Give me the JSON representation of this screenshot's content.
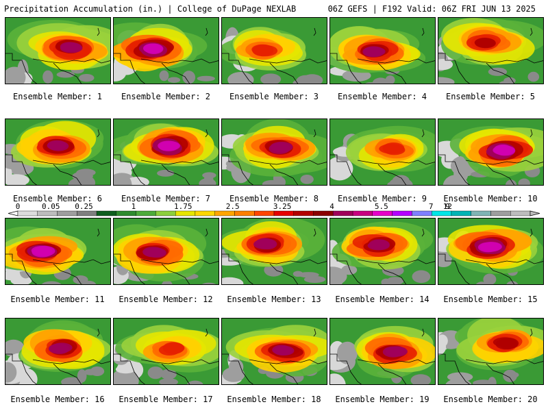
{
  "header": {
    "left": "Precipitation Accumulation (in.) | College of DuPage NEXLAB",
    "right": "06Z GEFS | F192 Valid: 06Z FRI JUN 13 2025"
  },
  "caption_prefix": "Ensemble Member: ",
  "members": [
    {
      "id": "1",
      "label": "Ensemble Member: 1",
      "intensity": 0.75
    },
    {
      "id": "2",
      "label": "Ensemble Member: 2",
      "intensity": 0.9
    },
    {
      "id": "3",
      "label": "Ensemble Member: 3",
      "intensity": 0.55
    },
    {
      "id": "4",
      "label": "Ensemble Member: 4",
      "intensity": 0.8
    },
    {
      "id": "5",
      "label": "Ensemble Member: 5",
      "intensity": 0.65
    },
    {
      "id": "6",
      "label": "Ensemble Member: 6",
      "intensity": 0.8
    },
    {
      "id": "7",
      "label": "Ensemble Member: 7",
      "intensity": 0.85
    },
    {
      "id": "8",
      "label": "Ensemble Member: 8",
      "intensity": 0.7
    },
    {
      "id": "9",
      "label": "Ensemble Member: 9",
      "intensity": 0.5
    },
    {
      "id": "10",
      "label": "Ensemble Member: 10",
      "intensity": 0.85
    },
    {
      "id": "11",
      "label": "Ensemble Member: 11",
      "intensity": 0.85
    },
    {
      "id": "12",
      "label": "Ensemble Member: 12",
      "intensity": 0.75
    },
    {
      "id": "13",
      "label": "Ensemble Member: 13",
      "intensity": 0.8
    },
    {
      "id": "14",
      "label": "Ensemble Member: 14",
      "intensity": 0.75
    },
    {
      "id": "15",
      "label": "Ensemble Member: 15",
      "intensity": 0.85
    },
    {
      "id": "16",
      "label": "Ensemble Member: 16",
      "intensity": 0.7
    },
    {
      "id": "17",
      "label": "Ensemble Member: 17",
      "intensity": 0.55
    },
    {
      "id": "18",
      "label": "Ensemble Member: 18",
      "intensity": 0.8
    },
    {
      "id": "19",
      "label": "Ensemble Member: 19",
      "intensity": 0.8
    },
    {
      "id": "20",
      "label": "Ensemble Member: 20",
      "intensity": 0.6
    }
  ],
  "colorbar": {
    "labels": [
      "0",
      "0.05",
      "0.25",
      "1",
      "1.75",
      "2.5",
      "3.25",
      "4",
      "5.5",
      "7",
      "9",
      "12"
    ],
    "colors": [
      "#dcdcdc",
      "#bdbdbd",
      "#9e9e9e",
      "#7f7f7f",
      "#0e5e1e",
      "#2e8b2e",
      "#4cab3a",
      "#8ccf3c",
      "#e6e600",
      "#ffd700",
      "#ffa500",
      "#ff7f00",
      "#ff4500",
      "#e60000",
      "#b30000",
      "#8b0000",
      "#a0005a",
      "#c8007f",
      "#e600c8",
      "#b400ff",
      "#7f7fff",
      "#00e6e6",
      "#00b4b4",
      "#7fb4b4",
      "#9e9e9e",
      "#bdbdbd"
    ]
  }
}
